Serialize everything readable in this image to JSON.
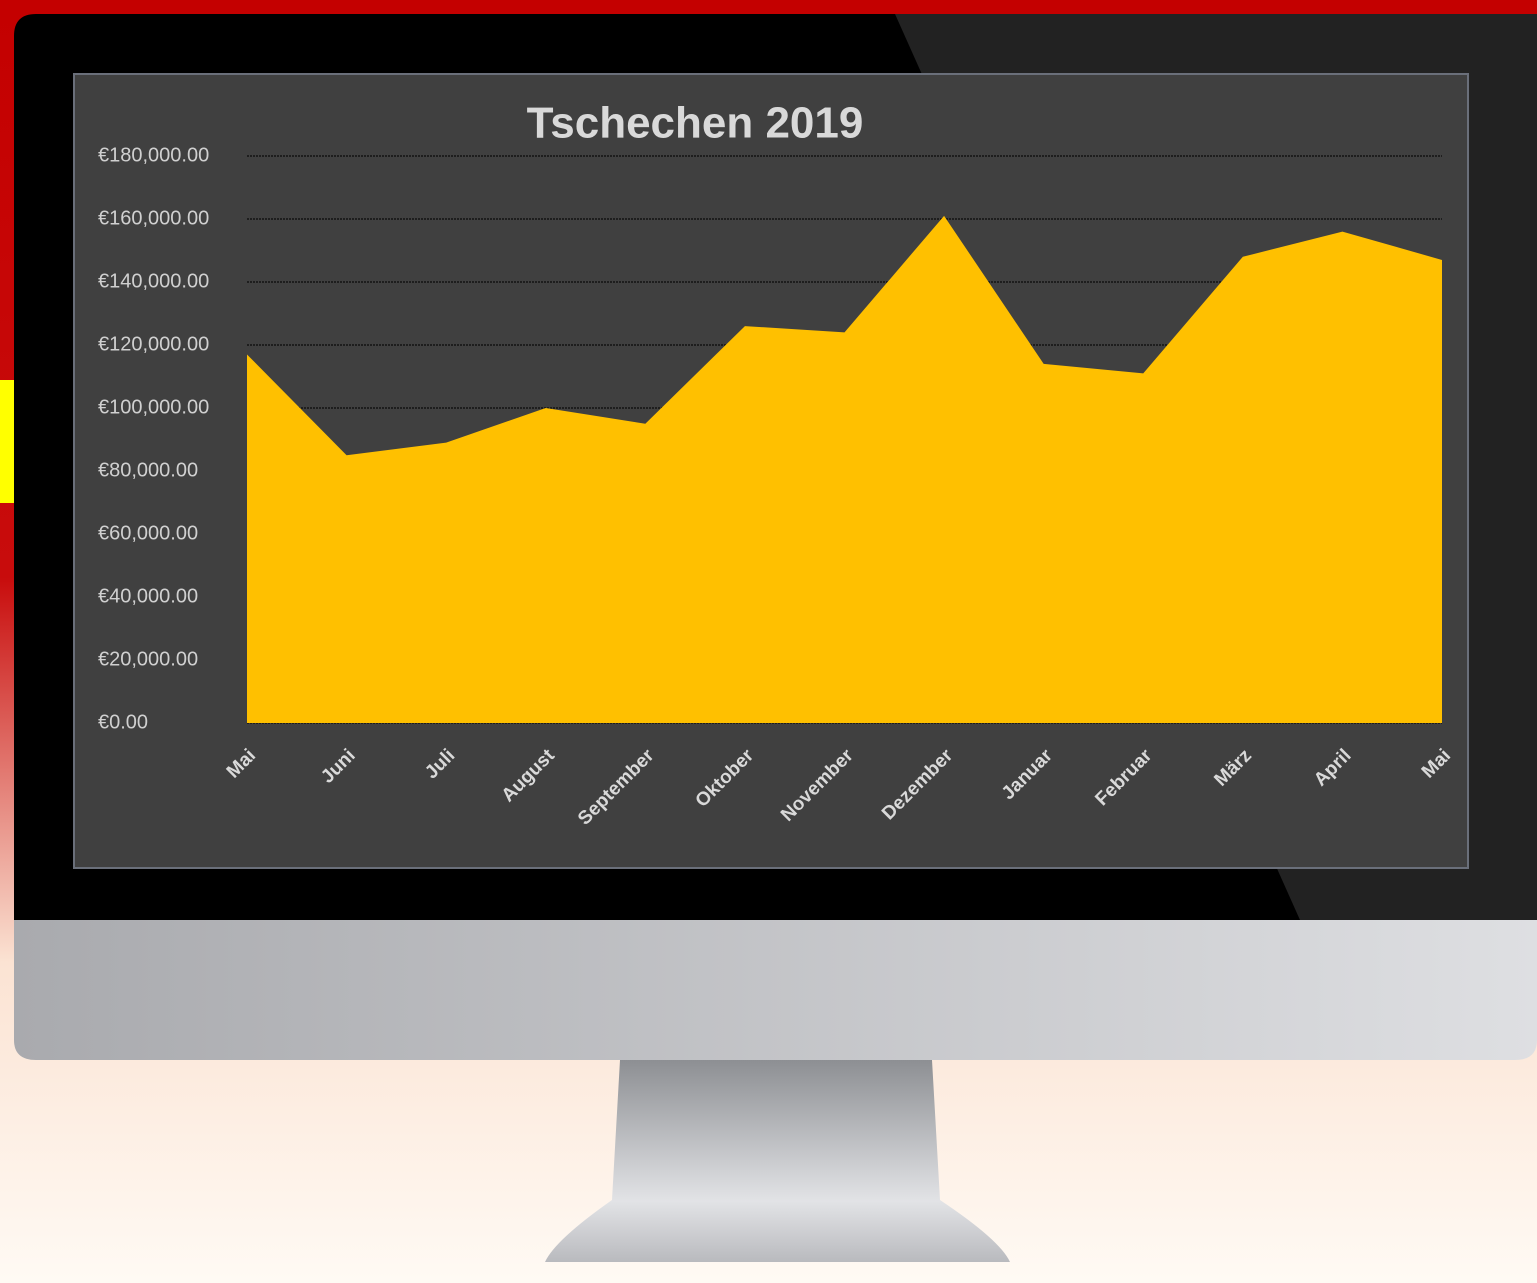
{
  "chart_data": {
    "type": "area",
    "title": "Tschechen 2019",
    "categories": [
      "Mai",
      "Juni",
      "Juli",
      "August",
      "September",
      "Oktober",
      "November",
      "Dezember",
      "Januar",
      "Februar",
      "März",
      "April",
      "Mai"
    ],
    "values": [
      117000,
      85000,
      89000,
      100000,
      95000,
      126000,
      124000,
      161000,
      114000,
      111000,
      148000,
      156000,
      147000
    ],
    "color": "#ffc000",
    "ylim": [
      0,
      180000
    ],
    "yticks": [
      {
        "value": 0,
        "label": "€0.00"
      },
      {
        "value": 20000,
        "label": "€20,000.00"
      },
      {
        "value": 40000,
        "label": "€40,000.00"
      },
      {
        "value": 60000,
        "label": "€60,000.00"
      },
      {
        "value": 80000,
        "label": "€80,000.00"
      },
      {
        "value": 100000,
        "label": "€100,000.00"
      },
      {
        "value": 120000,
        "label": "€120,000.00"
      },
      {
        "value": 140000,
        "label": "€140,000.00"
      },
      {
        "value": 160000,
        "label": "€160,000.00"
      },
      {
        "value": 180000,
        "label": "€180,000.00"
      }
    ],
    "grid": true
  }
}
